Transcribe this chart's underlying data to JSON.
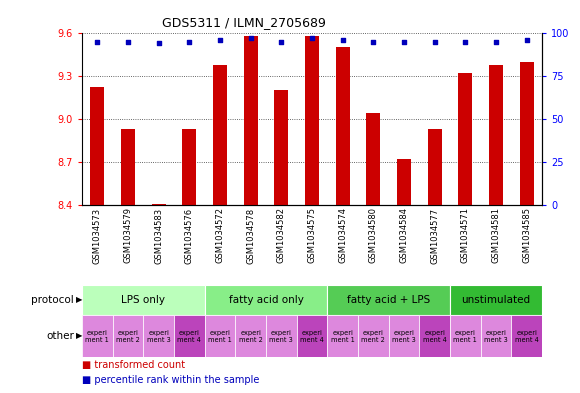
{
  "title": "GDS5311 / ILMN_2705689",
  "samples": [
    "GSM1034573",
    "GSM1034579",
    "GSM1034583",
    "GSM1034576",
    "GSM1034572",
    "GSM1034578",
    "GSM1034582",
    "GSM1034575",
    "GSM1034574",
    "GSM1034580",
    "GSM1034584",
    "GSM1034577",
    "GSM1034571",
    "GSM1034581",
    "GSM1034585"
  ],
  "transformed_count": [
    9.22,
    8.93,
    8.41,
    8.93,
    9.38,
    9.58,
    9.2,
    9.58,
    9.5,
    9.04,
    8.72,
    8.93,
    9.32,
    9.38,
    9.4
  ],
  "percentile_rank": [
    95,
    95,
    94,
    95,
    96,
    97,
    95,
    97,
    96,
    95,
    95,
    95,
    95,
    95,
    96
  ],
  "ylim_left": [
    8.4,
    9.6
  ],
  "ylim_right": [
    0,
    100
  ],
  "yticks_left": [
    8.4,
    8.7,
    9.0,
    9.3,
    9.6
  ],
  "yticks_right": [
    0,
    25,
    50,
    75,
    100
  ],
  "bar_color": "#cc0000",
  "dot_color": "#0000bb",
  "protocol_groups": [
    {
      "label": "LPS only",
      "start": 0,
      "end": 4,
      "color": "#bbffbb"
    },
    {
      "label": "fatty acid only",
      "start": 4,
      "end": 8,
      "color": "#88ee88"
    },
    {
      "label": "fatty acid + LPS",
      "start": 8,
      "end": 12,
      "color": "#55cc55"
    },
    {
      "label": "unstimulated",
      "start": 12,
      "end": 15,
      "color": "#33bb33"
    }
  ],
  "other_labels": [
    "experi\nment 1",
    "experi\nment 2",
    "experi\nment 3",
    "experi\nment 4",
    "experi\nment 1",
    "experi\nment 2",
    "experi\nment 3",
    "experi\nment 4",
    "experi\nment 1",
    "experi\nment 2",
    "experi\nment 3",
    "experi\nment 4",
    "experi\nment 1",
    "experi\nment 3",
    "experi\nment 4"
  ],
  "other_colors": [
    "#dd88dd",
    "#dd88dd",
    "#dd88dd",
    "#bb44bb",
    "#dd88dd",
    "#dd88dd",
    "#dd88dd",
    "#bb44bb",
    "#dd88dd",
    "#dd88dd",
    "#dd88dd",
    "#bb44bb",
    "#dd88dd",
    "#dd88dd",
    "#bb44bb"
  ],
  "chart_bg": "#ffffff",
  "tick_area_bg": "#d8d8d8",
  "grid_color": "#333333",
  "spine_color": "#000000"
}
